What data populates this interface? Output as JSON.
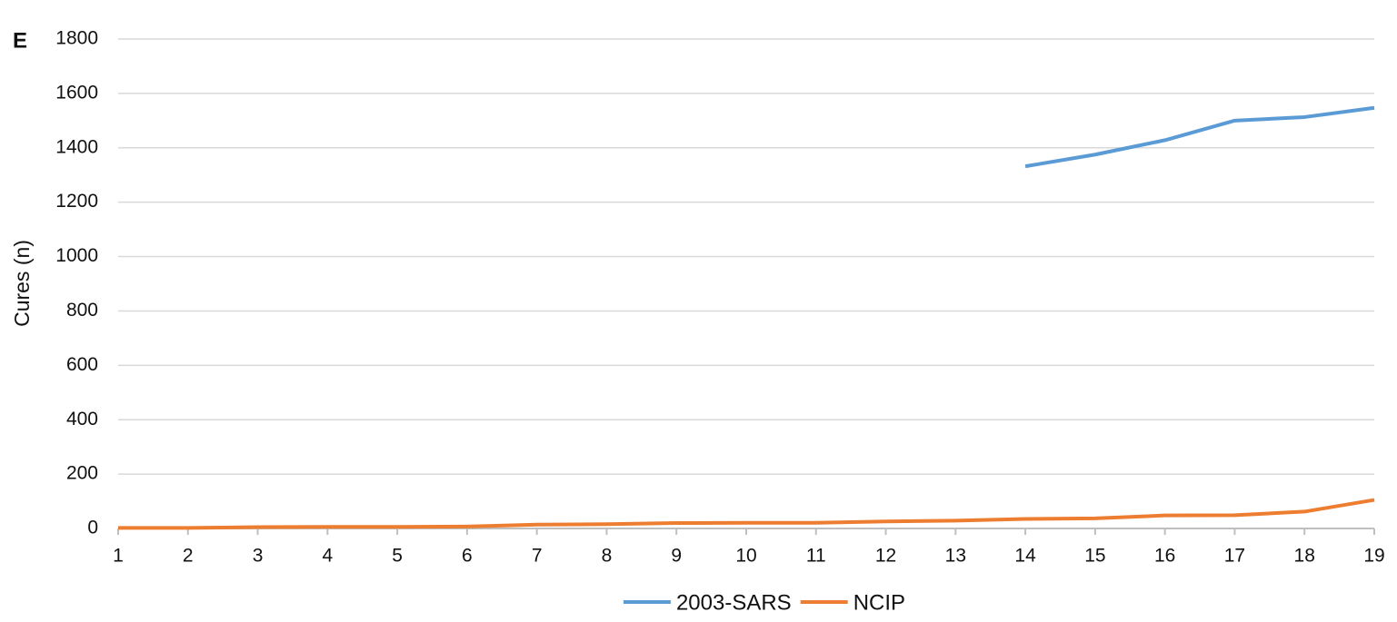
{
  "chart_data": {
    "type": "line",
    "panel_label": "E",
    "y_label": "Cures (n)",
    "x": [
      1,
      2,
      3,
      4,
      5,
      6,
      7,
      8,
      9,
      10,
      11,
      12,
      13,
      14,
      15,
      16,
      17,
      18,
      19
    ],
    "xlim": [
      1,
      19
    ],
    "series": [
      {
        "name": "2003-SARS",
        "color": "#5b9bd5",
        "values": [
          null,
          null,
          null,
          null,
          null,
          null,
          null,
          null,
          null,
          null,
          null,
          null,
          null,
          1332,
          1375,
          1428,
          1500,
          1513,
          1547
        ]
      },
      {
        "name": "NCIP",
        "color": "#ed7d31",
        "values": [
          2,
          2,
          5,
          6,
          6,
          7,
          14,
          16,
          20,
          21,
          21,
          26,
          29,
          35,
          37,
          48,
          49,
          62,
          105
        ]
      }
    ],
    "ylim": [
      0,
      1800
    ],
    "yticks": [
      0,
      200,
      400,
      600,
      800,
      1000,
      1200,
      1400,
      1600,
      1800
    ],
    "grid": true
  }
}
